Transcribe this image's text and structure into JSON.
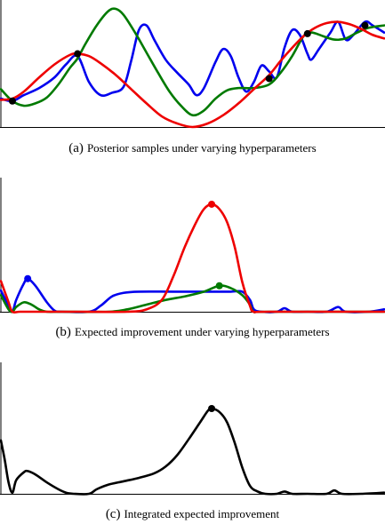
{
  "chart_data": [
    {
      "type": "line",
      "caption_letter": "(a)",
      "caption_text": "Posterior samples under varying hyperparameters",
      "xlim": [
        0,
        1
      ],
      "ylim": [
        0,
        1
      ],
      "series": [
        {
          "color": "#0000ee",
          "points": [
            [
              0.0,
              0.24
            ],
            [
              0.03,
              0.22
            ],
            [
              0.06,
              0.27
            ],
            [
              0.1,
              0.33
            ],
            [
              0.14,
              0.42
            ],
            [
              0.17,
              0.53
            ],
            [
              0.2,
              0.6
            ],
            [
              0.23,
              0.38
            ],
            [
              0.26,
              0.27
            ],
            [
              0.29,
              0.29
            ],
            [
              0.32,
              0.34
            ],
            [
              0.34,
              0.56
            ],
            [
              0.36,
              0.82
            ],
            [
              0.38,
              0.86
            ],
            [
              0.4,
              0.74
            ],
            [
              0.43,
              0.57
            ],
            [
              0.46,
              0.46
            ],
            [
              0.49,
              0.36
            ],
            [
              0.51,
              0.27
            ],
            [
              0.53,
              0.33
            ],
            [
              0.56,
              0.55
            ],
            [
              0.58,
              0.66
            ],
            [
              0.6,
              0.6
            ],
            [
              0.62,
              0.42
            ],
            [
              0.64,
              0.3
            ],
            [
              0.66,
              0.38
            ],
            [
              0.68,
              0.52
            ],
            [
              0.7,
              0.47
            ],
            [
              0.72,
              0.42
            ],
            [
              0.74,
              0.67
            ],
            [
              0.76,
              0.82
            ],
            [
              0.78,
              0.78
            ],
            [
              0.8,
              0.62
            ],
            [
              0.81,
              0.57
            ],
            [
              0.83,
              0.66
            ],
            [
              0.86,
              0.8
            ],
            [
              0.88,
              0.89
            ],
            [
              0.9,
              0.74
            ],
            [
              0.92,
              0.78
            ],
            [
              0.95,
              0.89
            ],
            [
              0.97,
              0.86
            ],
            [
              1.0,
              0.8
            ]
          ]
        },
        {
          "color": "#007a00",
          "points": [
            [
              0.0,
              0.32
            ],
            [
              0.03,
              0.22
            ],
            [
              0.06,
              0.18
            ],
            [
              0.09,
              0.2
            ],
            [
              0.12,
              0.25
            ],
            [
              0.15,
              0.36
            ],
            [
              0.18,
              0.5
            ],
            [
              0.2,
              0.58
            ],
            [
              0.22,
              0.7
            ],
            [
              0.25,
              0.86
            ],
            [
              0.28,
              0.98
            ],
            [
              0.3,
              1.0
            ],
            [
              0.32,
              0.95
            ],
            [
              0.35,
              0.8
            ],
            [
              0.38,
              0.63
            ],
            [
              0.41,
              0.46
            ],
            [
              0.44,
              0.3
            ],
            [
              0.47,
              0.18
            ],
            [
              0.5,
              0.1
            ],
            [
              0.53,
              0.14
            ],
            [
              0.56,
              0.24
            ],
            [
              0.59,
              0.31
            ],
            [
              0.62,
              0.33
            ],
            [
              0.66,
              0.33
            ],
            [
              0.7,
              0.36
            ],
            [
              0.73,
              0.46
            ],
            [
              0.76,
              0.6
            ],
            [
              0.79,
              0.77
            ],
            [
              0.81,
              0.8
            ],
            [
              0.84,
              0.77
            ],
            [
              0.87,
              0.74
            ],
            [
              0.9,
              0.75
            ],
            [
              0.93,
              0.8
            ],
            [
              0.96,
              0.84
            ],
            [
              1.0,
              0.86
            ]
          ]
        },
        {
          "color": "#ee0000",
          "points": [
            [
              0.0,
              0.23
            ],
            [
              0.03,
              0.24
            ],
            [
              0.06,
              0.3
            ],
            [
              0.1,
              0.42
            ],
            [
              0.14,
              0.53
            ],
            [
              0.18,
              0.61
            ],
            [
              0.2,
              0.62
            ],
            [
              0.23,
              0.6
            ],
            [
              0.26,
              0.54
            ],
            [
              0.3,
              0.44
            ],
            [
              0.34,
              0.32
            ],
            [
              0.38,
              0.2
            ],
            [
              0.42,
              0.09
            ],
            [
              0.46,
              0.03
            ],
            [
              0.5,
              0.0
            ],
            [
              0.54,
              0.03
            ],
            [
              0.58,
              0.1
            ],
            [
              0.62,
              0.2
            ],
            [
              0.66,
              0.32
            ],
            [
              0.7,
              0.44
            ],
            [
              0.73,
              0.56
            ],
            [
              0.76,
              0.67
            ],
            [
              0.79,
              0.77
            ],
            [
              0.82,
              0.84
            ],
            [
              0.85,
              0.88
            ],
            [
              0.88,
              0.89
            ],
            [
              0.91,
              0.87
            ],
            [
              0.94,
              0.83
            ],
            [
              0.97,
              0.78
            ],
            [
              1.0,
              0.75
            ]
          ]
        }
      ],
      "points": [
        {
          "x": 0.03,
          "y": 0.22,
          "color": "#000000"
        },
        {
          "x": 0.2,
          "y": 0.62,
          "color": "#000000"
        },
        {
          "x": 0.7,
          "y": 0.41,
          "color": "#000000"
        },
        {
          "x": 0.8,
          "y": 0.79,
          "color": "#000000"
        },
        {
          "x": 0.95,
          "y": 0.86,
          "color": "#000000"
        }
      ]
    },
    {
      "type": "line",
      "caption_letter": "(b)",
      "caption_text": "Expected improvement under varying hyperparameters",
      "xlim": [
        0,
        1
      ],
      "ylim": [
        0,
        1
      ],
      "series": [
        {
          "color": "#0000ee",
          "points": [
            [
              0.0,
              0.18
            ],
            [
              0.02,
              0.05
            ],
            [
              0.03,
              0.0
            ],
            [
              0.04,
              0.1
            ],
            [
              0.06,
              0.24
            ],
            [
              0.07,
              0.28
            ],
            [
              0.09,
              0.22
            ],
            [
              0.12,
              0.08
            ],
            [
              0.14,
              0.01
            ],
            [
              0.16,
              0.0
            ],
            [
              0.23,
              0.0
            ],
            [
              0.26,
              0.05
            ],
            [
              0.29,
              0.13
            ],
            [
              0.32,
              0.16
            ],
            [
              0.36,
              0.17
            ],
            [
              0.45,
              0.17
            ],
            [
              0.55,
              0.17
            ],
            [
              0.6,
              0.17
            ],
            [
              0.63,
              0.17
            ],
            [
              0.65,
              0.1
            ],
            [
              0.66,
              0.02
            ],
            [
              0.68,
              0.0
            ],
            [
              0.72,
              0.0
            ],
            [
              0.74,
              0.03
            ],
            [
              0.76,
              0.0
            ],
            [
              0.8,
              0.0
            ],
            [
              0.85,
              0.0
            ],
            [
              0.88,
              0.04
            ],
            [
              0.9,
              0.0
            ],
            [
              0.96,
              0.0
            ],
            [
              1.0,
              0.02
            ]
          ]
        },
        {
          "color": "#007a00",
          "points": [
            [
              0.0,
              0.14
            ],
            [
              0.02,
              0.02
            ],
            [
              0.03,
              0.0
            ],
            [
              0.04,
              0.04
            ],
            [
              0.06,
              0.08
            ],
            [
              0.08,
              0.06
            ],
            [
              0.1,
              0.02
            ],
            [
              0.12,
              0.0
            ],
            [
              0.16,
              0.0
            ],
            [
              0.28,
              0.0
            ],
            [
              0.33,
              0.02
            ],
            [
              0.38,
              0.06
            ],
            [
              0.43,
              0.1
            ],
            [
              0.48,
              0.13
            ],
            [
              0.53,
              0.17
            ],
            [
              0.57,
              0.22
            ],
            [
              0.6,
              0.2
            ],
            [
              0.63,
              0.14
            ],
            [
              0.65,
              0.06
            ],
            [
              0.66,
              0.0
            ],
            [
              0.7,
              0.0
            ],
            [
              1.0,
              0.0
            ]
          ]
        },
        {
          "color": "#ee0000",
          "points": [
            [
              0.0,
              0.26
            ],
            [
              0.02,
              0.08
            ],
            [
              0.03,
              0.0
            ],
            [
              0.05,
              0.0
            ],
            [
              0.1,
              0.0
            ],
            [
              0.2,
              0.0
            ],
            [
              0.33,
              0.0
            ],
            [
              0.38,
              0.02
            ],
            [
              0.42,
              0.1
            ],
            [
              0.45,
              0.3
            ],
            [
              0.48,
              0.55
            ],
            [
              0.51,
              0.76
            ],
            [
              0.53,
              0.87
            ],
            [
              0.55,
              0.91
            ],
            [
              0.57,
              0.87
            ],
            [
              0.59,
              0.76
            ],
            [
              0.61,
              0.55
            ],
            [
              0.63,
              0.25
            ],
            [
              0.65,
              0.05
            ],
            [
              0.66,
              0.0
            ],
            [
              0.7,
              0.0
            ],
            [
              1.0,
              0.0
            ]
          ]
        }
      ],
      "points": [
        {
          "x": 0.07,
          "y": 0.28,
          "color": "#0000ee"
        },
        {
          "x": 0.57,
          "y": 0.22,
          "color": "#007a00"
        },
        {
          "x": 0.55,
          "y": 0.91,
          "color": "#ee0000"
        }
      ]
    },
    {
      "type": "line",
      "caption_letter": "(c)",
      "caption_text": "Integrated expected improvement",
      "xlim": [
        0,
        1
      ],
      "ylim": [
        0,
        1
      ],
      "series": [
        {
          "color": "#000000",
          "points": [
            [
              0.0,
              0.47
            ],
            [
              0.01,
              0.3
            ],
            [
              0.02,
              0.1
            ],
            [
              0.03,
              0.01
            ],
            [
              0.04,
              0.12
            ],
            [
              0.06,
              0.19
            ],
            [
              0.07,
              0.2
            ],
            [
              0.09,
              0.17
            ],
            [
              0.12,
              0.1
            ],
            [
              0.15,
              0.04
            ],
            [
              0.17,
              0.01
            ],
            [
              0.19,
              0.0
            ],
            [
              0.23,
              0.0
            ],
            [
              0.25,
              0.04
            ],
            [
              0.28,
              0.08
            ],
            [
              0.32,
              0.11
            ],
            [
              0.36,
              0.14
            ],
            [
              0.4,
              0.18
            ],
            [
              0.43,
              0.24
            ],
            [
              0.46,
              0.34
            ],
            [
              0.49,
              0.48
            ],
            [
              0.52,
              0.63
            ],
            [
              0.54,
              0.73
            ],
            [
              0.55,
              0.75
            ],
            [
              0.57,
              0.72
            ],
            [
              0.59,
              0.63
            ],
            [
              0.61,
              0.45
            ],
            [
              0.63,
              0.23
            ],
            [
              0.65,
              0.07
            ],
            [
              0.67,
              0.02
            ],
            [
              0.69,
              0.0
            ],
            [
              0.72,
              0.0
            ],
            [
              0.74,
              0.02
            ],
            [
              0.76,
              0.0
            ],
            [
              0.8,
              0.0
            ],
            [
              0.85,
              0.0
            ],
            [
              0.87,
              0.03
            ],
            [
              0.89,
              0.0
            ],
            [
              0.94,
              0.0
            ],
            [
              1.0,
              0.01
            ]
          ]
        }
      ],
      "points": [
        {
          "x": 0.55,
          "y": 0.75,
          "color": "#000000"
        }
      ]
    }
  ]
}
